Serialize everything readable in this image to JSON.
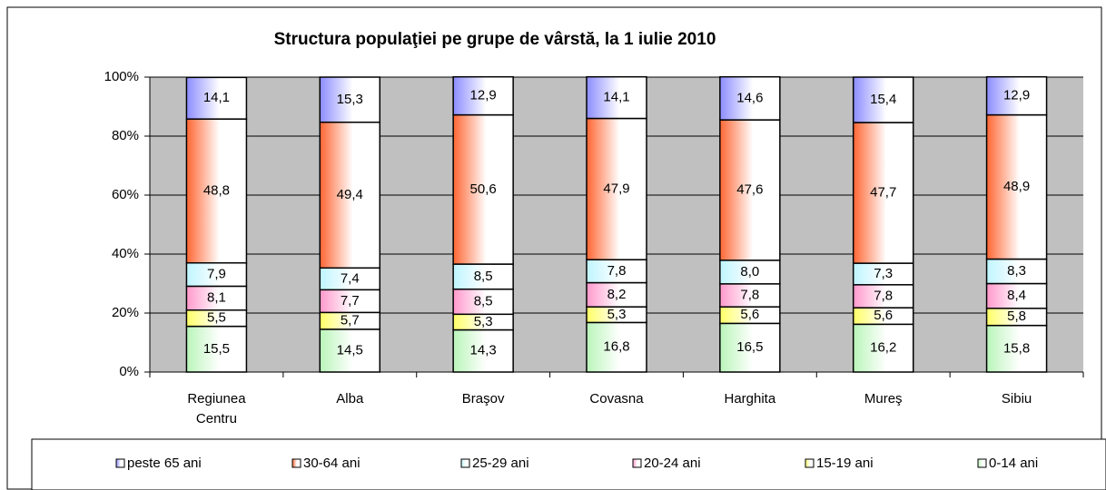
{
  "chart_data": {
    "type": "stacked_bar_100",
    "title": "Structura populaţiei pe grupe de vârstă, la 1 iulie 2010",
    "categories": [
      "Regiunea Centru",
      "Alba",
      "Braşov",
      "Covasna",
      "Harghita",
      "Mureş",
      "Sibiu"
    ],
    "series": [
      {
        "name": "peste 65 ani",
        "color": "#8c8cff",
        "values": [
          14.1,
          15.3,
          12.9,
          14.1,
          14.6,
          15.4,
          12.9
        ],
        "value_labels": [
          "14,1",
          "15,3",
          "12,9",
          "14,1",
          "14,6",
          "15,4",
          "12,9"
        ]
      },
      {
        "name": "30-64 ani",
        "color": "#ff6633",
        "values": [
          48.8,
          49.4,
          50.6,
          47.9,
          47.6,
          47.7,
          48.9
        ],
        "value_labels": [
          "48,8",
          "49,4",
          "50,6",
          "47,9",
          "47,6",
          "47,7",
          "48,9"
        ]
      },
      {
        "name": "25-29 ani",
        "color": "#bff5ff",
        "values": [
          7.9,
          7.4,
          8.5,
          7.8,
          8.0,
          7.3,
          8.3
        ],
        "value_labels": [
          "7,9",
          "7,4",
          "8,5",
          "7,8",
          "8,0",
          "7,3",
          "8,3"
        ]
      },
      {
        "name": "20-24 ani",
        "color": "#ff99cc",
        "values": [
          8.1,
          7.7,
          8.5,
          8.2,
          7.8,
          7.8,
          8.4
        ],
        "value_labels": [
          "8,1",
          "7,7",
          "8,5",
          "8,2",
          "7,8",
          "7,8",
          "8,4"
        ]
      },
      {
        "name": "15-19 ani",
        "color": "#ffff66",
        "values": [
          5.5,
          5.7,
          5.3,
          5.3,
          5.6,
          5.6,
          5.8
        ],
        "value_labels": [
          "5,5",
          "5,7",
          "5,3",
          "5,3",
          "5,6",
          "5,6",
          "5,8"
        ]
      },
      {
        "name": "0-14 ani",
        "color": "#b9f5b9",
        "values": [
          15.5,
          14.5,
          14.3,
          16.8,
          16.5,
          16.2,
          15.8
        ],
        "value_labels": [
          "15,5",
          "14,5",
          "14,3",
          "16,8",
          "16,5",
          "16,2",
          "15,8"
        ]
      }
    ],
    "ylim": [
      0,
      100
    ],
    "yticks": [
      {
        "value": 0,
        "label": "0%"
      },
      {
        "value": 20,
        "label": "20%"
      },
      {
        "value": 40,
        "label": "40%"
      },
      {
        "value": 60,
        "label": "60%"
      },
      {
        "value": 80,
        "label": "80%"
      },
      {
        "value": 100,
        "label": "100%"
      }
    ],
    "grid": true,
    "legend": "bottom"
  }
}
